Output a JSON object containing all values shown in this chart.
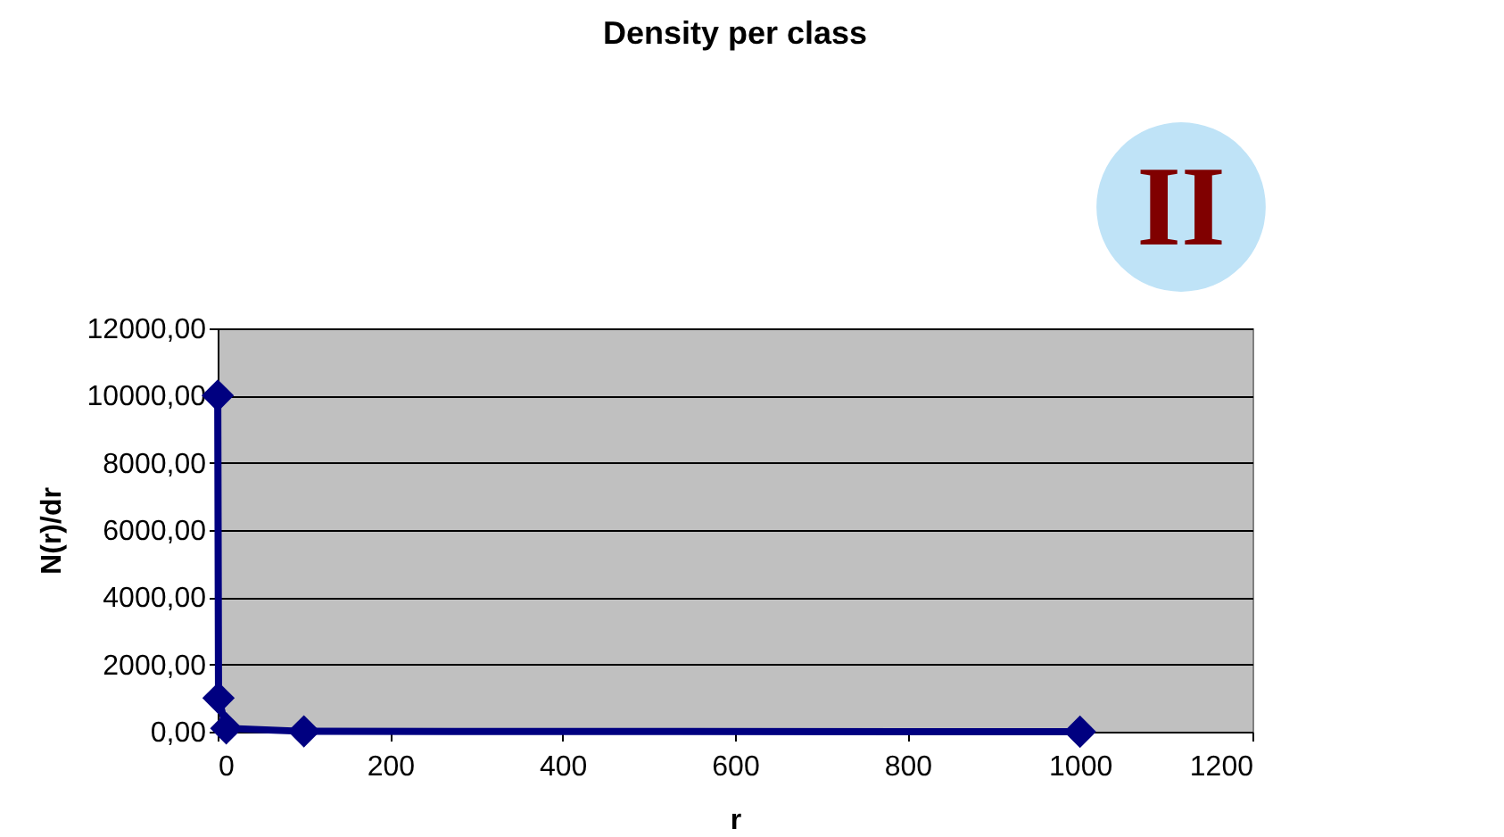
{
  "chart_data": {
    "type": "line",
    "title": "Density per class",
    "xlabel": "r",
    "ylabel": "N(r)/dr",
    "x": [
      0.1,
      1,
      10,
      100,
      1000
    ],
    "series": [
      {
        "color": "#000080",
        "values": [
          10000,
          1000,
          100,
          10,
          1
        ]
      }
    ],
    "xlim": [
      0,
      1200
    ],
    "xticks": [
      0,
      200,
      400,
      600,
      800,
      1000,
      1200
    ],
    "ylim": [
      0,
      12000
    ],
    "yticks": [
      {
        "value": 0,
        "label": "0,00"
      },
      {
        "value": 2000,
        "label": "2000,00"
      },
      {
        "value": 4000,
        "label": "4000,00"
      },
      {
        "value": 6000,
        "label": "6000,00"
      },
      {
        "value": 8000,
        "label": "8000,00"
      },
      {
        "value": 10000,
        "label": "10000,00"
      },
      {
        "value": 12000,
        "label": "12000,00"
      }
    ],
    "grid": "y",
    "marker": "diamond",
    "line_style": "solid",
    "annotations": [
      "II"
    ]
  }
}
